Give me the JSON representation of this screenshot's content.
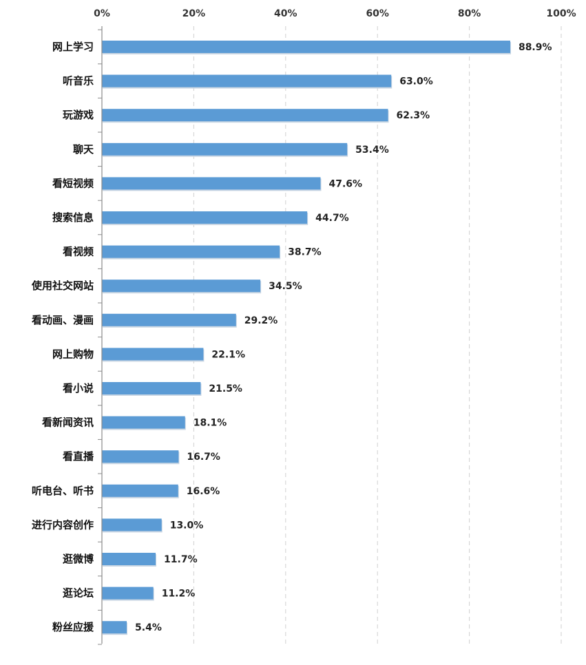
{
  "chart_data": {
    "type": "bar",
    "orientation": "horizontal",
    "categories": [
      "网上学习",
      "听音乐",
      "玩游戏",
      "聊天",
      "看短视频",
      "搜索信息",
      "看视频",
      "使用社交网站",
      "看动画、漫画",
      "网上购物",
      "看小说",
      "看新闻资讯",
      "看直播",
      "听电台、听书",
      "进行内容创作",
      "逛微博",
      "逛论坛",
      "粉丝应援"
    ],
    "values": [
      88.9,
      63.0,
      62.3,
      53.4,
      47.6,
      44.7,
      38.7,
      34.5,
      29.2,
      22.1,
      21.5,
      18.1,
      16.7,
      16.6,
      13.0,
      11.7,
      11.2,
      5.4
    ],
    "value_labels": [
      "88.9%",
      "63.0%",
      "62.3%",
      "53.4%",
      "47.6%",
      "44.7%",
      "38.7%",
      "34.5%",
      "29.2%",
      "22.1%",
      "21.5%",
      "18.1%",
      "16.7%",
      "16.6%",
      "13.0%",
      "11.7%",
      "11.2%",
      "5.4%"
    ],
    "xlim": [
      0,
      100
    ],
    "x_ticks": [
      0,
      20,
      40,
      60,
      80,
      100
    ],
    "x_tick_labels": [
      "0%",
      "20%",
      "40%",
      "60%",
      "80%",
      "100%"
    ],
    "x_axis_position": "top",
    "grid": "vertical-dashed",
    "title": "",
    "xlabel": "",
    "ylabel": "",
    "colors": {
      "bar": "#5B9BD5",
      "bar_shadow": "#c9d6e3",
      "grid": "#cfcfcf",
      "axis": "#8a8a8a"
    }
  }
}
